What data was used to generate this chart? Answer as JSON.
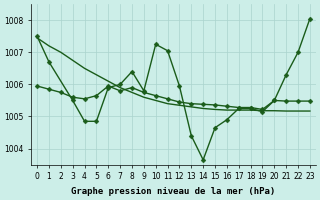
{
  "xlabel": "Graphe pression niveau de la mer (hPa)",
  "bg_color": "#cceee8",
  "grid_color": "#aad4ce",
  "line_color": "#1a5c1a",
  "xlim": [
    -0.5,
    23.5
  ],
  "ylim": [
    1003.5,
    1008.5
  ],
  "yticks": [
    1004,
    1005,
    1006,
    1007,
    1008
  ],
  "xticks": [
    0,
    1,
    2,
    3,
    4,
    5,
    6,
    7,
    8,
    9,
    10,
    11,
    12,
    13,
    14,
    15,
    16,
    17,
    18,
    19,
    20,
    21,
    22,
    23
  ],
  "series1_x": [
    0,
    1,
    3,
    4,
    5,
    6,
    7,
    8,
    9,
    10,
    11,
    12,
    13,
    14,
    15,
    16,
    17,
    18,
    19,
    20,
    21,
    22,
    23
  ],
  "series1_y": [
    1007.5,
    1006.7,
    1005.5,
    1004.85,
    1004.85,
    1005.9,
    1006.0,
    1006.4,
    1005.8,
    1007.25,
    1007.05,
    1005.95,
    1004.4,
    1003.65,
    1004.65,
    1004.9,
    1005.25,
    1005.25,
    1005.15,
    1005.5,
    1006.3,
    1007.0,
    1008.05
  ],
  "series2_x": [
    0,
    1,
    2,
    3,
    4,
    5,
    6,
    7,
    8,
    9,
    10,
    11,
    12,
    13,
    14,
    15,
    16,
    17,
    18,
    19,
    20,
    21,
    22,
    23
  ],
  "series2_y": [
    1005.95,
    1005.85,
    1005.75,
    1005.6,
    1005.55,
    1005.65,
    1005.95,
    1005.8,
    1005.9,
    1005.75,
    1005.65,
    1005.55,
    1005.45,
    1005.4,
    1005.38,
    1005.36,
    1005.32,
    1005.28,
    1005.28,
    1005.22,
    1005.5,
    1005.48,
    1005.48,
    1005.48
  ],
  "series3_x": [
    0,
    1,
    2,
    3,
    4,
    5,
    6,
    7,
    8,
    9,
    10,
    11,
    12,
    13,
    14,
    15,
    16,
    17,
    18,
    19,
    20,
    21,
    22,
    23
  ],
  "series3_y": [
    1007.45,
    1007.2,
    1007.0,
    1006.75,
    1006.5,
    1006.3,
    1006.1,
    1005.9,
    1005.75,
    1005.6,
    1005.5,
    1005.4,
    1005.35,
    1005.3,
    1005.25,
    1005.22,
    1005.2,
    1005.2,
    1005.2,
    1005.18,
    1005.18,
    1005.17,
    1005.17,
    1005.17
  ],
  "markersize": 2.5,
  "linewidth": 1.0,
  "tick_fontsize": 5.5,
  "label_fontsize": 6.5
}
